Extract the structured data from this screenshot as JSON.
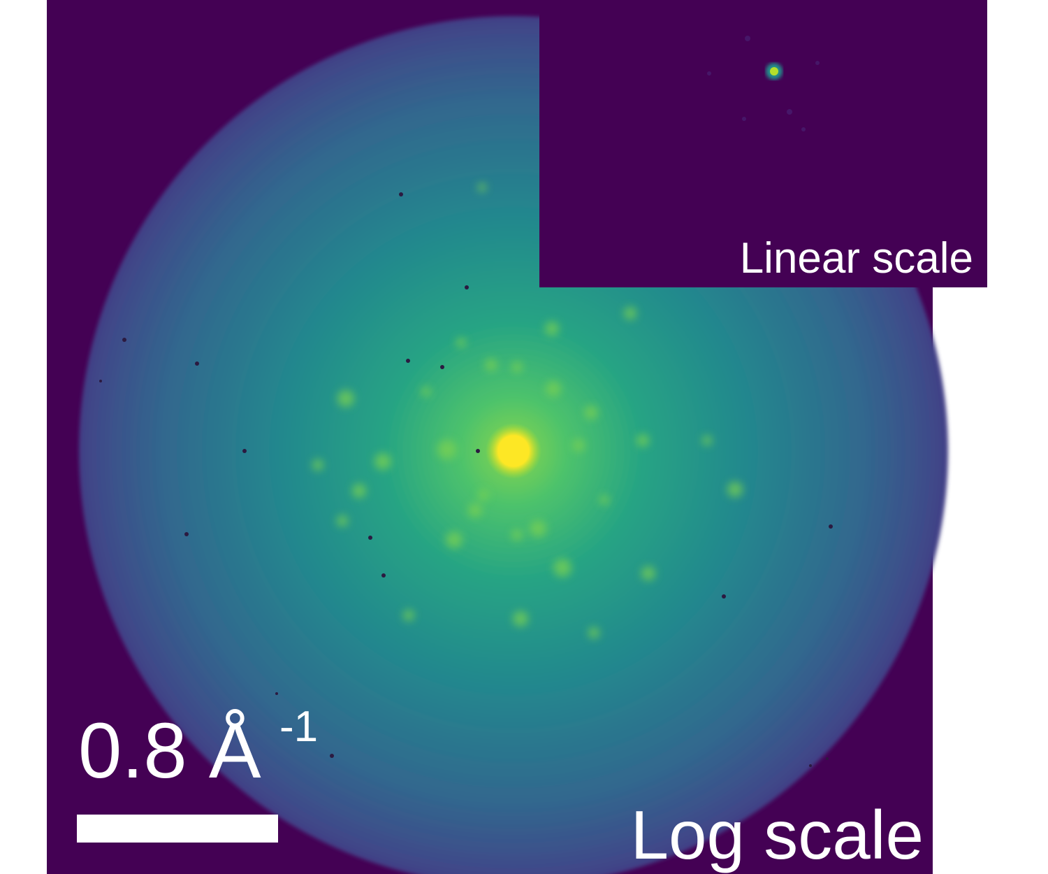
{
  "scale_bar": {
    "label": "0.8 Å",
    "exponent": "-1"
  },
  "labels": {
    "main": "Log scale",
    "inset": "Linear scale"
  }
}
